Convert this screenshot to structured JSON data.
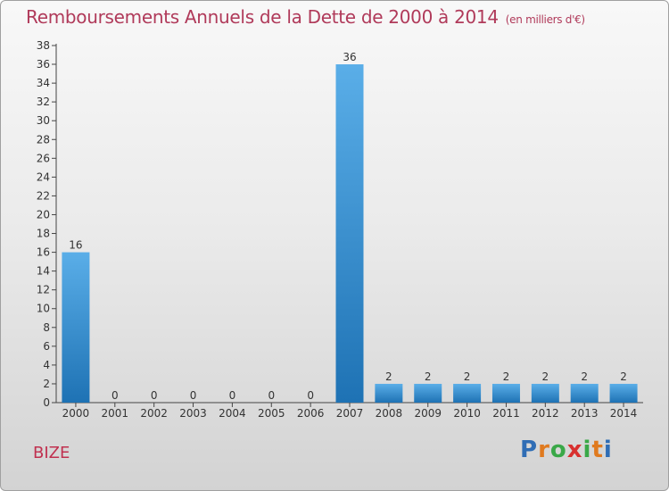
{
  "header": {
    "title": "Remboursements Annuels de la Dette de 2000 à 2014",
    "unit": "(en milliers d'€)"
  },
  "footer": {
    "commune": "BIZE",
    "logo": [
      "P",
      "r",
      "o",
      "x",
      "i",
      "t",
      "i"
    ]
  },
  "colors": {
    "title": "#b03a5a",
    "commune": "#c0304f",
    "bar_top": "#5aaee8",
    "bar_bottom": "#1e72b4",
    "logo": [
      "#2f6db5",
      "#e07a1f",
      "#3aa848",
      "#d8302f",
      "#3aa848",
      "#e07a1f",
      "#2f6db5"
    ]
  },
  "chart_data": {
    "type": "bar",
    "title": "Remboursements Annuels de la Dette de 2000 à 2014",
    "categories": [
      "2000",
      "2001",
      "2002",
      "2003",
      "2004",
      "2005",
      "2006",
      "2007",
      "2008",
      "2009",
      "2010",
      "2011",
      "2012",
      "2013",
      "2014"
    ],
    "values": [
      16,
      0,
      0,
      0,
      0,
      0,
      0,
      36,
      2,
      2,
      2,
      2,
      2,
      2,
      2
    ],
    "ylim": [
      0,
      38
    ],
    "yticks": [
      0,
      2,
      4,
      6,
      8,
      10,
      12,
      14,
      16,
      18,
      20,
      22,
      24,
      26,
      28,
      30,
      32,
      34,
      36,
      38
    ],
    "grid": false,
    "show_value_labels": true
  }
}
